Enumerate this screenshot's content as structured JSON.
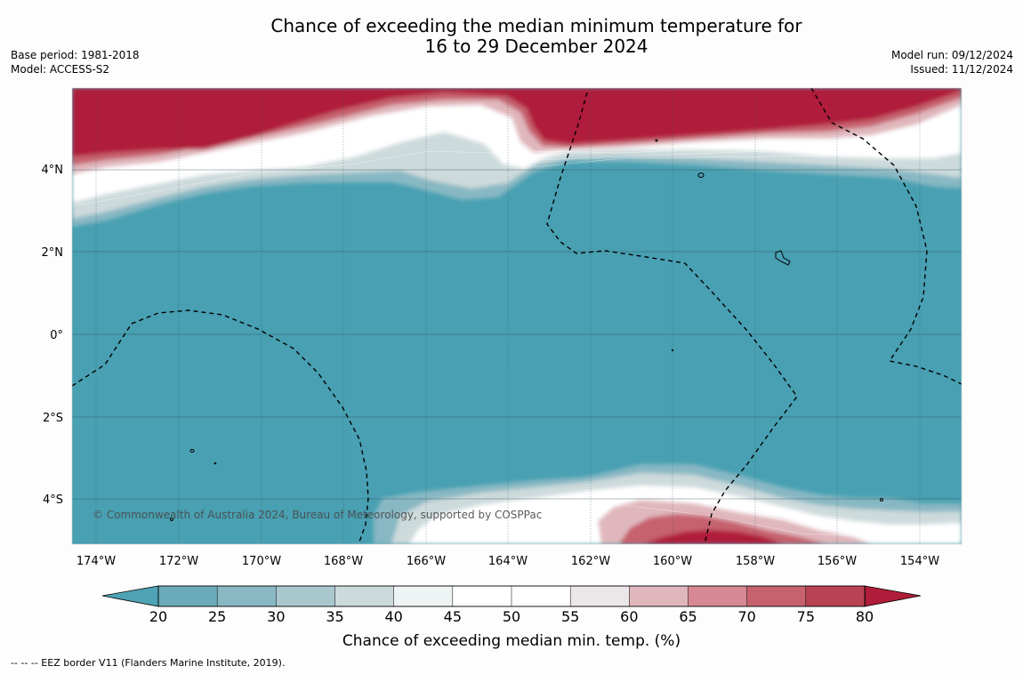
{
  "title": {
    "line1": "Chance of exceeding the median minimum temperature for",
    "line2": "16 to 29 December 2024"
  },
  "meta_left": {
    "base_period": "Base period: 1981-2018",
    "model": "Model: ACCESS-S2"
  },
  "meta_right": {
    "model_run": "Model run: 09/12/2024",
    "issued": "Issued: 11/12/2024"
  },
  "map": {
    "lon_labels": [
      "174°W",
      "172°W",
      "170°W",
      "168°W",
      "166°W",
      "164°W",
      "162°W",
      "160°W",
      "158°W",
      "156°W",
      "154°W"
    ],
    "lat_labels": [
      "4°N",
      "2°N",
      "0°",
      "2°S",
      "4°S"
    ],
    "copyright": "© Commonwealth of Australia 2024, Bureau of Meteorology, supported by COSPPac",
    "dominant_category": "20-25",
    "colors": {
      "background_probability": "#48a0b2",
      "high_probability": "#b01d3a"
    }
  },
  "colorbar": {
    "ticks": [
      "20",
      "25",
      "30",
      "35",
      "40",
      "45",
      "50",
      "55",
      "60",
      "65",
      "70",
      "75",
      "80"
    ],
    "colors": [
      "#4fa3b4",
      "#6aaab9",
      "#88b8c3",
      "#a9c8cd",
      "#cddadc",
      "#eef3f3",
      "#ffffff",
      "#ffffff",
      "#ebe6e7",
      "#e0b7bd",
      "#d68893",
      "#c6626e",
      "#b94253",
      "#b01d3a"
    ],
    "label": "Chance of exceeding median min. temp. (%)"
  },
  "footer": {
    "eez_legend": "--  --  -- EEZ border V11 (Flanders Marine Institute, 2019)."
  }
}
